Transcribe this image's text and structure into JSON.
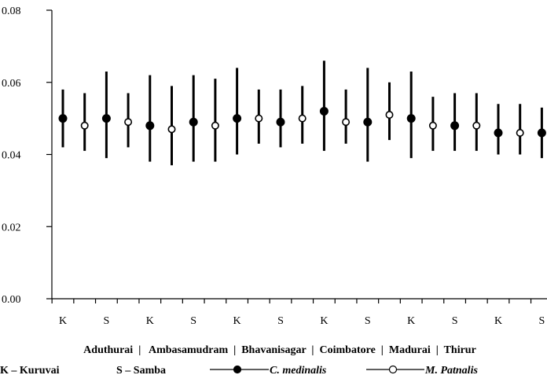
{
  "chart_data": {
    "type": "scatter",
    "title": "",
    "xlabel": "",
    "ylabel": "",
    "ylim": [
      0,
      0.08
    ],
    "yticks": [
      "0.00",
      "0.02",
      "0.04",
      "0.06",
      "0.08"
    ],
    "grid": false,
    "x_tick_labels": [
      "K",
      "S",
      "K",
      "S",
      "K",
      "S",
      "K",
      "S",
      "K",
      "S",
      "K",
      "S"
    ],
    "group_labels_line": "Aduthurai  |   Ambasamudram  |  Bhavanisagar  |  Coimbatore  |  Madurai  |  Thirur",
    "series": [
      {
        "name": "C. medinalis",
        "marker": "filled-circle",
        "means": [
          0.05,
          0.05,
          0.048,
          0.049,
          0.05,
          0.049,
          0.052,
          0.049,
          0.05,
          0.048,
          0.046,
          0.046
        ],
        "lower": [
          0.042,
          0.039,
          0.038,
          0.038,
          0.04,
          0.042,
          0.041,
          0.038,
          0.039,
          0.041,
          0.04,
          0.039
        ],
        "upper": [
          0.058,
          0.063,
          0.062,
          0.062,
          0.064,
          0.058,
          0.066,
          0.064,
          0.063,
          0.057,
          0.054,
          0.053
        ]
      },
      {
        "name": "M. Patnalis",
        "marker": "open-circle",
        "means": [
          0.048,
          0.049,
          0.047,
          0.048,
          0.05,
          0.05,
          0.049,
          0.051,
          0.048,
          0.048,
          0.046
        ],
        "lower": [
          0.041,
          0.042,
          0.037,
          0.038,
          0.043,
          0.043,
          0.043,
          0.044,
          0.041,
          0.041,
          0.04
        ],
        "upper": [
          0.057,
          0.057,
          0.059,
          0.061,
          0.058,
          0.059,
          0.058,
          0.06,
          0.056,
          0.057,
          0.054
        ]
      }
    ],
    "legend": {
      "abbr_k": "K – Kuruvai",
      "abbr_s": "S – Samba",
      "medinalis_label": "C. medinalis",
      "patnalis_label": "M. Patnalis"
    }
  }
}
